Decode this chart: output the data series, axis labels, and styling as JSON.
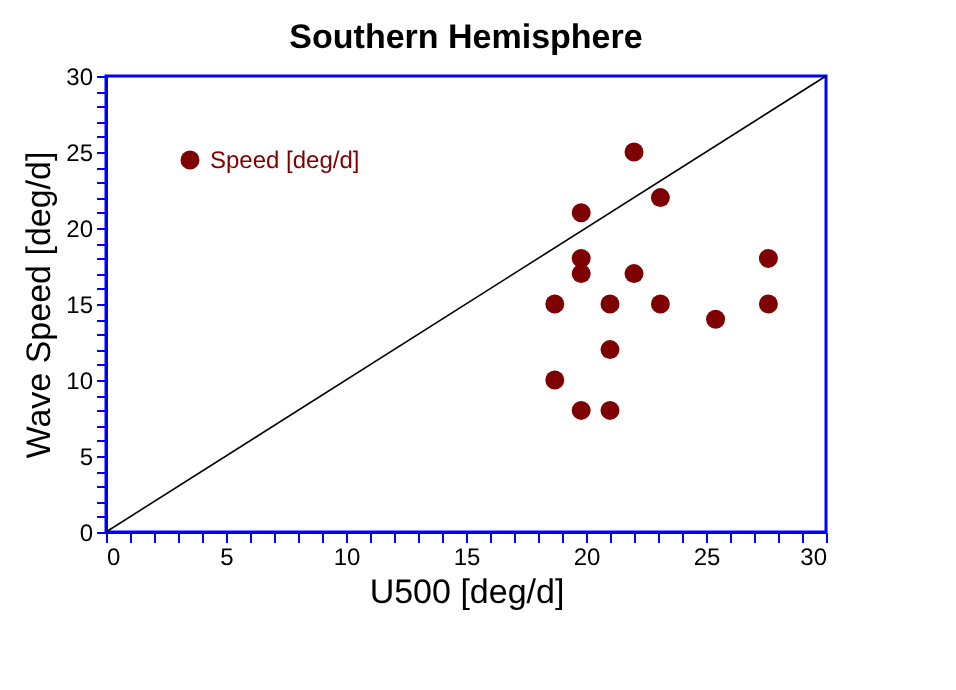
{
  "chart_data": {
    "type": "scatter",
    "title": "Southern Hemisphere",
    "xlabel": "U500 [deg/d]",
    "ylabel": "Wave Speed [deg/d]",
    "xlim": [
      0,
      30
    ],
    "ylim": [
      0,
      30
    ],
    "xticks": [
      0,
      {
        "value": 1,
        "label": null
      },
      {
        "value": 2,
        "label": null
      },
      {
        "value": 3,
        "label": null
      },
      {
        "value": 4,
        "label": null
      },
      5,
      {
        "value": 6,
        "label": null
      },
      {
        "value": 7,
        "label": null
      },
      {
        "value": 8,
        "label": null
      },
      {
        "value": 9,
        "label": null
      },
      10,
      {
        "value": 11,
        "label": null
      },
      {
        "value": 12,
        "label": null
      },
      {
        "value": 13,
        "label": null
      },
      {
        "value": 14,
        "label": null
      },
      15,
      {
        "value": 16,
        "label": null
      },
      {
        "value": 17,
        "label": null
      },
      {
        "value": 18,
        "label": null
      },
      {
        "value": 19,
        "label": null
      },
      20,
      {
        "value": 21,
        "label": null
      },
      {
        "value": 22,
        "label": null
      },
      {
        "value": 23,
        "label": null
      },
      {
        "value": 24,
        "label": null
      },
      25,
      {
        "value": 26,
        "label": null
      },
      {
        "value": 27,
        "label": null
      },
      {
        "value": 28,
        "label": null
      },
      {
        "value": 29,
        "label": null
      },
      30
    ],
    "yticks": [
      0,
      {
        "value": 1,
        "label": null
      },
      {
        "value": 2,
        "label": null
      },
      {
        "value": 3,
        "label": null
      },
      {
        "value": 4,
        "label": null
      },
      5,
      {
        "value": 6,
        "label": null
      },
      {
        "value": 7,
        "label": null
      },
      {
        "value": 8,
        "label": null
      },
      {
        "value": 9,
        "label": null
      },
      10,
      {
        "value": 11,
        "label": null
      },
      {
        "value": 12,
        "label": null
      },
      {
        "value": 13,
        "label": null
      },
      {
        "value": 14,
        "label": null
      },
      15,
      {
        "value": 16,
        "label": null
      },
      {
        "value": 17,
        "label": null
      },
      {
        "value": 18,
        "label": null
      },
      {
        "value": 19,
        "label": null
      },
      20,
      {
        "value": 21,
        "label": null
      },
      {
        "value": 22,
        "label": null
      },
      {
        "value": 23,
        "label": null
      },
      {
        "value": 24,
        "label": null
      },
      25,
      {
        "value": 26,
        "label": null
      },
      {
        "value": 27,
        "label": null
      },
      {
        "value": 28,
        "label": null
      },
      {
        "value": 29,
        "label": null
      },
      30
    ],
    "grid": false,
    "legend": "top left",
    "series": [
      {
        "name": "Speed [deg/d]",
        "color": "#7f0000",
        "marker": "circle",
        "x": [
          18.7,
          18.7,
          19.8,
          19.8,
          19.8,
          19.8,
          21,
          21,
          21,
          22,
          22,
          23.1,
          23.1,
          25.4,
          27.6,
          27.6
        ],
        "values": [
          15,
          10,
          21,
          18,
          17,
          8,
          15,
          12,
          8,
          25,
          17,
          22,
          15,
          14,
          18,
          15
        ]
      },
      {
        "type": "line",
        "color": "#000000",
        "x": [
          0,
          30
        ],
        "values": [
          0,
          30
        ],
        "line_style": "solid",
        "marker": "none"
      }
    ]
  }
}
